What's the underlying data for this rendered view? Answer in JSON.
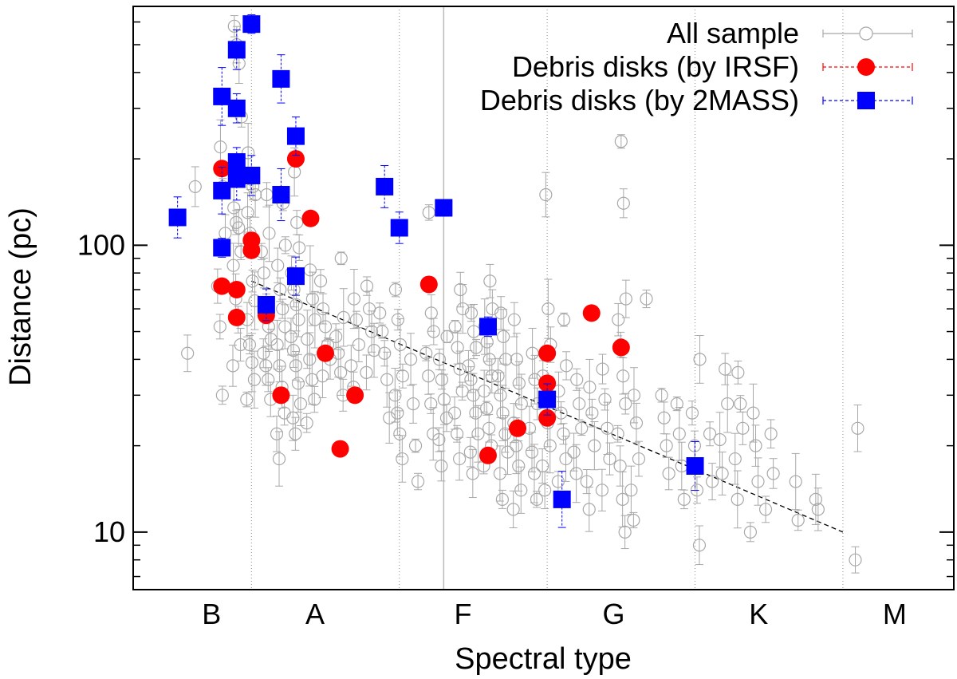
{
  "chart_data": {
    "type": "scatter",
    "title": "",
    "xlabel": "Spectral type",
    "ylabel": "Distance (pc)",
    "yscale": "log",
    "ylim": [
      6.3,
      680
    ],
    "xlim": [
      -0.8,
      4.75
    ],
    "x_unit_note": "x in spectral-class units: 0=B0, 1=A0, 2=F0, 3=G0, 4=K0, 5=M0 (fractional = subtype/10)",
    "x_major_ticks": [
      {
        "label": "B",
        "x": -0.27
      },
      {
        "label": "A",
        "x": 0.43
      },
      {
        "label": "F",
        "x": 1.43
      },
      {
        "label": "G",
        "x": 2.45
      },
      {
        "label": "K",
        "x": 3.43
      },
      {
        "label": "M",
        "x": 4.35
      }
    ],
    "x_dividers": [
      0.0,
      1.0,
      2.0,
      3.0,
      4.0
    ],
    "x_gray_line": 1.3,
    "y_tick_labels": [
      {
        "label": "10",
        "y": 10
      },
      {
        "label": "100",
        "y": 100
      }
    ],
    "y_minor_ticks": [
      7,
      8,
      9,
      20,
      30,
      40,
      50,
      60,
      70,
      80,
      90,
      200,
      300,
      400,
      500,
      600
    ],
    "trend_line": {
      "style": "dashed",
      "x": [
        0.0,
        4.0
      ],
      "y": [
        75,
        10
      ]
    },
    "legend": {
      "placement": "top-right",
      "entries": [
        {
          "label": "All sample",
          "series": "all_sample"
        },
        {
          "label": "Debris disks (by IRSF)",
          "series": "irsf"
        },
        {
          "label": "Debris disks (by 2MASS)",
          "series": "twomass"
        }
      ]
    },
    "series": [
      {
        "name": "All sample",
        "key": "all_sample",
        "marker": "open-circle",
        "color": "#a8a8a8",
        "errorbar_style": "solid",
        "x": [
          -0.4,
          -0.4,
          -0.2,
          -0.2,
          -0.2,
          -0.2,
          -0.2,
          -0.2,
          -0.1,
          -0.1,
          -0.1,
          -0.1,
          -0.1,
          -0.1,
          -0.1,
          -0.1,
          -0.1,
          -0.1,
          -0.1,
          -0.1,
          -0.1,
          0.0,
          0.0,
          0.0,
          0.0,
          0.0,
          0.0,
          0.0,
          0.0,
          0.0,
          0.0,
          0.0,
          0.0,
          0.0,
          0.1,
          0.1,
          0.1,
          0.1,
          0.1,
          0.1,
          0.1,
          0.1,
          0.1,
          0.1,
          0.1,
          0.2,
          0.2,
          0.2,
          0.2,
          0.2,
          0.2,
          0.2,
          0.2,
          0.2,
          0.2,
          0.2,
          0.2,
          0.3,
          0.3,
          0.3,
          0.3,
          0.3,
          0.3,
          0.3,
          0.3,
          0.3,
          0.3,
          0.3,
          0.3,
          0.3,
          0.3,
          0.4,
          0.4,
          0.4,
          0.4,
          0.4,
          0.4,
          0.4,
          0.4,
          0.5,
          0.5,
          0.5,
          0.5,
          0.5,
          0.5,
          0.6,
          0.6,
          0.6,
          0.6,
          0.6,
          0.6,
          0.7,
          0.7,
          0.7,
          0.7,
          0.7,
          0.8,
          0.8,
          0.8,
          0.8,
          0.8,
          0.9,
          0.9,
          0.9,
          0.9,
          0.9,
          1.0,
          1.0,
          1.0,
          1.0,
          1.0,
          1.0,
          1.0,
          1.0,
          1.1,
          1.1,
          1.1,
          1.1,
          1.2,
          1.2,
          1.2,
          1.2,
          1.2,
          1.2,
          1.2,
          1.3,
          1.3,
          1.3,
          1.3,
          1.3,
          1.3,
          1.3,
          1.4,
          1.4,
          1.4,
          1.4,
          1.4,
          1.4,
          1.4,
          1.4,
          1.4,
          1.5,
          1.5,
          1.5,
          1.5,
          1.5,
          1.5,
          1.5,
          1.5,
          1.5,
          1.5,
          1.6,
          1.6,
          1.6,
          1.6,
          1.6,
          1.6,
          1.6,
          1.6,
          1.6,
          1.6,
          1.6,
          1.7,
          1.7,
          1.7,
          1.7,
          1.7,
          1.7,
          1.7,
          1.7,
          1.7,
          1.7,
          1.8,
          1.8,
          1.8,
          1.8,
          1.8,
          1.8,
          1.8,
          1.8,
          1.8,
          1.9,
          1.9,
          1.9,
          1.9,
          1.9,
          1.9,
          1.9,
          2.0,
          2.0,
          2.0,
          2.0,
          2.0,
          2.0,
          2.0,
          2.0,
          2.0,
          2.1,
          2.1,
          2.1,
          2.1,
          2.1,
          2.1,
          2.1,
          2.2,
          2.2,
          2.2,
          2.2,
          2.2,
          2.3,
          2.3,
          2.3,
          2.3,
          2.3,
          2.4,
          2.4,
          2.4,
          2.4,
          2.4,
          2.5,
          2.5,
          2.5,
          2.5,
          2.5,
          2.5,
          2.5,
          2.5,
          2.5,
          2.5,
          2.5,
          2.6,
          2.6,
          2.6,
          2.6,
          2.6,
          2.7,
          2.8,
          2.8,
          2.8,
          2.8,
          2.9,
          2.9,
          2.9,
          2.9,
          3.0,
          3.0,
          3.0,
          3.0,
          3.0,
          3.1,
          3.1,
          3.2,
          3.2,
          3.2,
          3.2,
          3.3,
          3.3,
          3.3,
          3.3,
          3.3,
          3.4,
          3.4,
          3.4,
          3.4,
          3.5,
          3.5,
          3.5,
          3.7,
          3.7,
          3.8,
          3.8,
          4.1,
          4.1
        ],
        "y": [
          42,
          160,
          30,
          52,
          72,
          110,
          160,
          220,
          38,
          45,
          55,
          65,
          85,
          95,
          115,
          120,
          135,
          280,
          430,
          500,
          580,
          29,
          34,
          39,
          45,
          55,
          64,
          75,
          110,
          130,
          150,
          160,
          170,
          210,
          29,
          34,
          38,
          42,
          47,
          52,
          60,
          80,
          95,
          110,
          150,
          18,
          22,
          26,
          32,
          38,
          45,
          52,
          60,
          70,
          85,
          100,
          140,
          22,
          25,
          28,
          33,
          38,
          43,
          48,
          55,
          62,
          70,
          80,
          98,
          120,
          180,
          24,
          29,
          34,
          40,
          47,
          55,
          65,
          82,
          35,
          40,
          45,
          52,
          60,
          75,
          30,
          36,
          42,
          48,
          56,
          90,
          32,
          38,
          45,
          55,
          65,
          36,
          43,
          50,
          60,
          72,
          25,
          34,
          42,
          50,
          58,
          18,
          22,
          26,
          30,
          35,
          45,
          55,
          70,
          15,
          20,
          28,
          40,
          22,
          28,
          35,
          42,
          50,
          58,
          130,
          17,
          21,
          25,
          29,
          34,
          40,
          48,
          18,
          22,
          26,
          31,
          37,
          44,
          52,
          60,
          70,
          16,
          19,
          22,
          26,
          30,
          34,
          38,
          44,
          50,
          58,
          17,
          20,
          23,
          27,
          31,
          35,
          40,
          46,
          52,
          60,
          75,
          13,
          16,
          19,
          22,
          26,
          30,
          35,
          40,
          48,
          58,
          12,
          14,
          17,
          20,
          24,
          28,
          33,
          40,
          55,
          13,
          16,
          19,
          23,
          28,
          34,
          42,
          14,
          17,
          20,
          24,
          29,
          35,
          45,
          60,
          150,
          15,
          18,
          22,
          26,
          31,
          38,
          55,
          16,
          19,
          23,
          28,
          34,
          12,
          15,
          20,
          26,
          32,
          14,
          18,
          23,
          29,
          37,
          10,
          13,
          17,
          22,
          28,
          35,
          45,
          55,
          65,
          140,
          230,
          11,
          14,
          18,
          24,
          30,
          65,
          16,
          20,
          25,
          30,
          13,
          17,
          22,
          28,
          9,
          14,
          20,
          26,
          40,
          15,
          22,
          16,
          21,
          28,
          37,
          13,
          18,
          23,
          28,
          36,
          10,
          15,
          20,
          26,
          12,
          16,
          22,
          11,
          15,
          12,
          13,
          23,
          8
        ],
        "note": "Approximate placement of the dense gray open-circle population; individual points estimated visually."
      },
      {
        "name": "Debris disks (by IRSF)",
        "key": "irsf",
        "marker": "filled-circle",
        "color": "#ff0000",
        "errorbar_style": "dashed",
        "x": [
          -0.2,
          -0.2,
          -0.1,
          -0.1,
          0.0,
          0.0,
          0.1,
          0.2,
          0.3,
          0.4,
          0.5,
          0.6,
          0.7,
          1.2,
          1.6,
          1.8,
          2.0,
          2.0,
          2.0,
          2.3,
          2.5
        ],
        "y": [
          185,
          72,
          70,
          56,
          104,
          96,
          57,
          30,
          200,
          124,
          42,
          19.5,
          30,
          73,
          18.5,
          23,
          42,
          33,
          25,
          58,
          44
        ]
      },
      {
        "name": "Debris disks (by 2MASS)",
        "key": "twomass",
        "marker": "filled-square",
        "color": "#0000ff",
        "errorbar_style": "dashed",
        "x": [
          -0.5,
          -0.2,
          -0.2,
          -0.2,
          -0.1,
          -0.1,
          -0.1,
          -0.1,
          0.0,
          0.0,
          0.1,
          0.2,
          0.2,
          0.3,
          0.3,
          0.9,
          1.0,
          1.3,
          1.6,
          2.0,
          2.1,
          3.0
        ],
        "y": [
          125,
          98,
          155,
          330,
          170,
          195,
          300,
          480,
          175,
          590,
          62,
          150,
          380,
          240,
          78,
          160,
          115,
          135,
          52,
          29,
          13,
          17
        ]
      }
    ]
  }
}
